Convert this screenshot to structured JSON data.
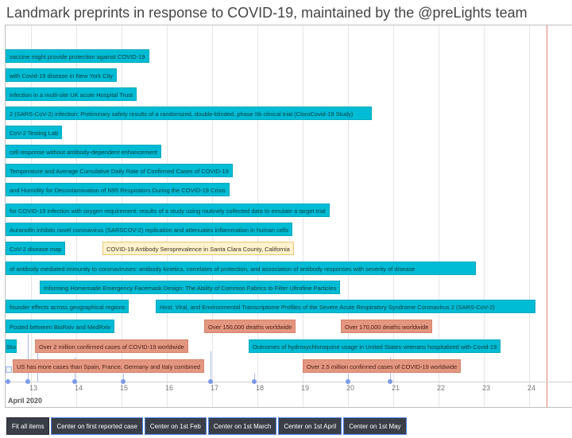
{
  "page": {
    "title": "Landmark preprints in response to COVID-19, maintained by the @preLights team"
  },
  "timeline": {
    "month_label": "April 2020",
    "tick_labels": [
      "13",
      "14",
      "15",
      "16",
      "17",
      "18",
      "19",
      "20",
      "21",
      "22",
      "23",
      "24"
    ],
    "items": [
      {
        "text": "vaccine might provide protection against COVID-19",
        "kind": "paper"
      },
      {
        "text": "with Covid-19 disease in New York City",
        "kind": "paper"
      },
      {
        "text": "infection in a multi-site UK acute Hospital Trust",
        "kind": "paper"
      },
      {
        "text": "2 (SARS-CoV-2) infection: Preliminary safety results of a randomized, double-blinded, phase IIb clinical trial (CloroCovid-19 Study)",
        "kind": "paper"
      },
      {
        "text": "CoV-2 Testing Lab",
        "kind": "paper"
      },
      {
        "text": "cell response without antibody-dependent enhancement",
        "kind": "paper"
      },
      {
        "text": "Temperature and Average Cumulative Daily Rate of Confirmed Cases of COVID-19",
        "kind": "paper"
      },
      {
        "text": "and Humidity for Decontamination of N95 Respirators During the COVID-19 Crisis",
        "kind": "paper"
      },
      {
        "text": "for COVID-19 infection with oxygen requirement: results of a study using routinely collected data to emulate a target trial",
        "kind": "paper"
      },
      {
        "text": "Auranofin inhibits novel coronavirus (SARSCOV-2) replication and attenuates inflammation in human cells",
        "kind": "paper"
      },
      {
        "text": "CoV-2 disease map",
        "kind": "paper"
      },
      {
        "text": "COVID-19 Antibody Seroprevalence in Santa Clara County, California",
        "kind": "selected"
      },
      {
        "text": "of antibody mediated immunity to coronaviruses: antibody kinetics, correlates of protection, and association of antibody responses with severity of disease",
        "kind": "paper"
      },
      {
        "text": "Informing Homemade Emergency Facemask Design: The Ability of Common Fabrics to Filter Ultrafine Particles",
        "kind": "paper"
      },
      {
        "text": "founder effects across geographical regions",
        "kind": "paper"
      },
      {
        "text": "Host, Viral, and Environmental Transcriptome Profiles of the Severe Acute Respiratory Syndrome Coronavirus 2 (SARS-CoV-2)",
        "kind": "paper"
      },
      {
        "text": "Posted between BioRxiv and MedRxiv",
        "kind": "paper"
      },
      {
        "text": "Over 150,000 deaths worldwide",
        "kind": "milestone"
      },
      {
        "text": "Over 170,000 deaths worldwide",
        "kind": "milestone"
      },
      {
        "text": "Study",
        "kind": "paper"
      },
      {
        "text": "Over 2 million confirmed cases of COVID-19 worldwide",
        "kind": "milestone"
      },
      {
        "text": "Outcomes of hydroxychloroquine usage in United States veterans hospitalized with Covid-19",
        "kind": "paper"
      },
      {
        "text": "US has more cases than Spain, France, Germany and Italy combined",
        "kind": "milestone"
      },
      {
        "text": "Over 2.5 million confirmed cases of COVID-19 worldwide",
        "kind": "milestone"
      }
    ]
  },
  "controls": {
    "buttons": [
      "Fit all items",
      "Center on first reported case",
      "Center on 1st Feb",
      "Center on 1st March",
      "Center on 1st April",
      "Center on 1st May"
    ]
  },
  "colors": {
    "paper": "#00bcd4",
    "milestone": "#e39680",
    "selected": "#fff2cc",
    "current_time_line": "#e0837a",
    "button_bg": "#3a3f47"
  }
}
